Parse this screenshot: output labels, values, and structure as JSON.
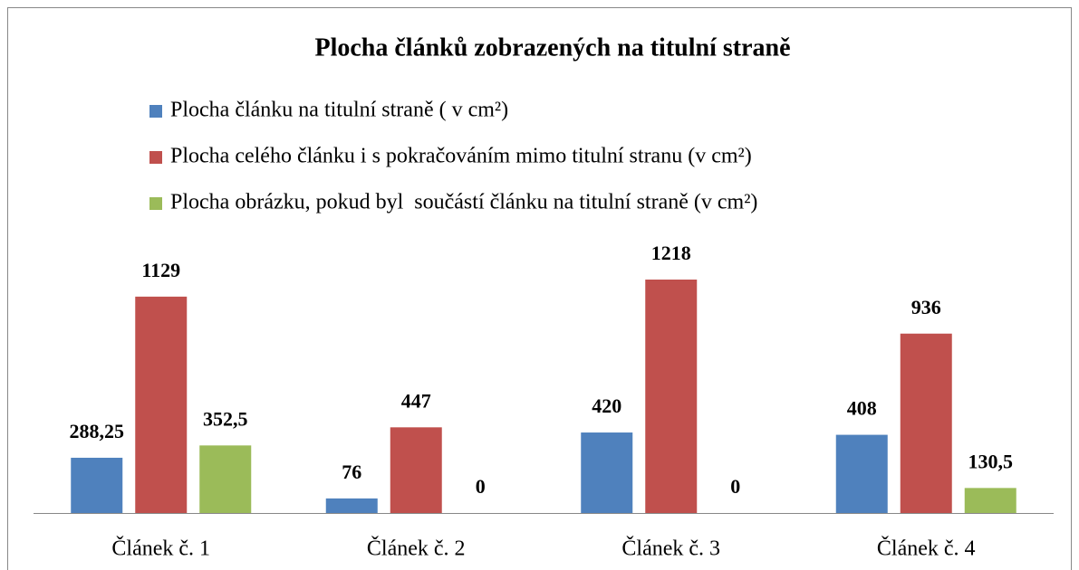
{
  "chart_data": {
    "type": "bar",
    "title": "Plocha článků zobrazených na titulní straně",
    "categories": [
      "Článek č. 1",
      "Článek č. 2",
      "Článek č. 3",
      "Článek č. 4"
    ],
    "series": [
      {
        "name": "Plocha článku na titulní straně ( v cm²)",
        "color": "#4f81bd",
        "values": [
          288.25,
          76,
          420,
          408
        ],
        "value_labels": [
          "288,25",
          "76",
          "420",
          "408"
        ]
      },
      {
        "name": "Plocha celého článku i s pokračováním mimo titulní stranu (v cm²)",
        "color": "#c0504d",
        "values": [
          1129,
          447,
          1218,
          936
        ]
      },
      {
        "name": "Plocha obrázku, pokud byl  součástí článku na titulní straně (v cm²)",
        "color": "#9bbb59",
        "values": [
          352.5,
          0,
          0,
          130.5
        ],
        "value_labels": [
          "352,5",
          "0",
          "0",
          "130,5"
        ]
      }
    ]
  }
}
